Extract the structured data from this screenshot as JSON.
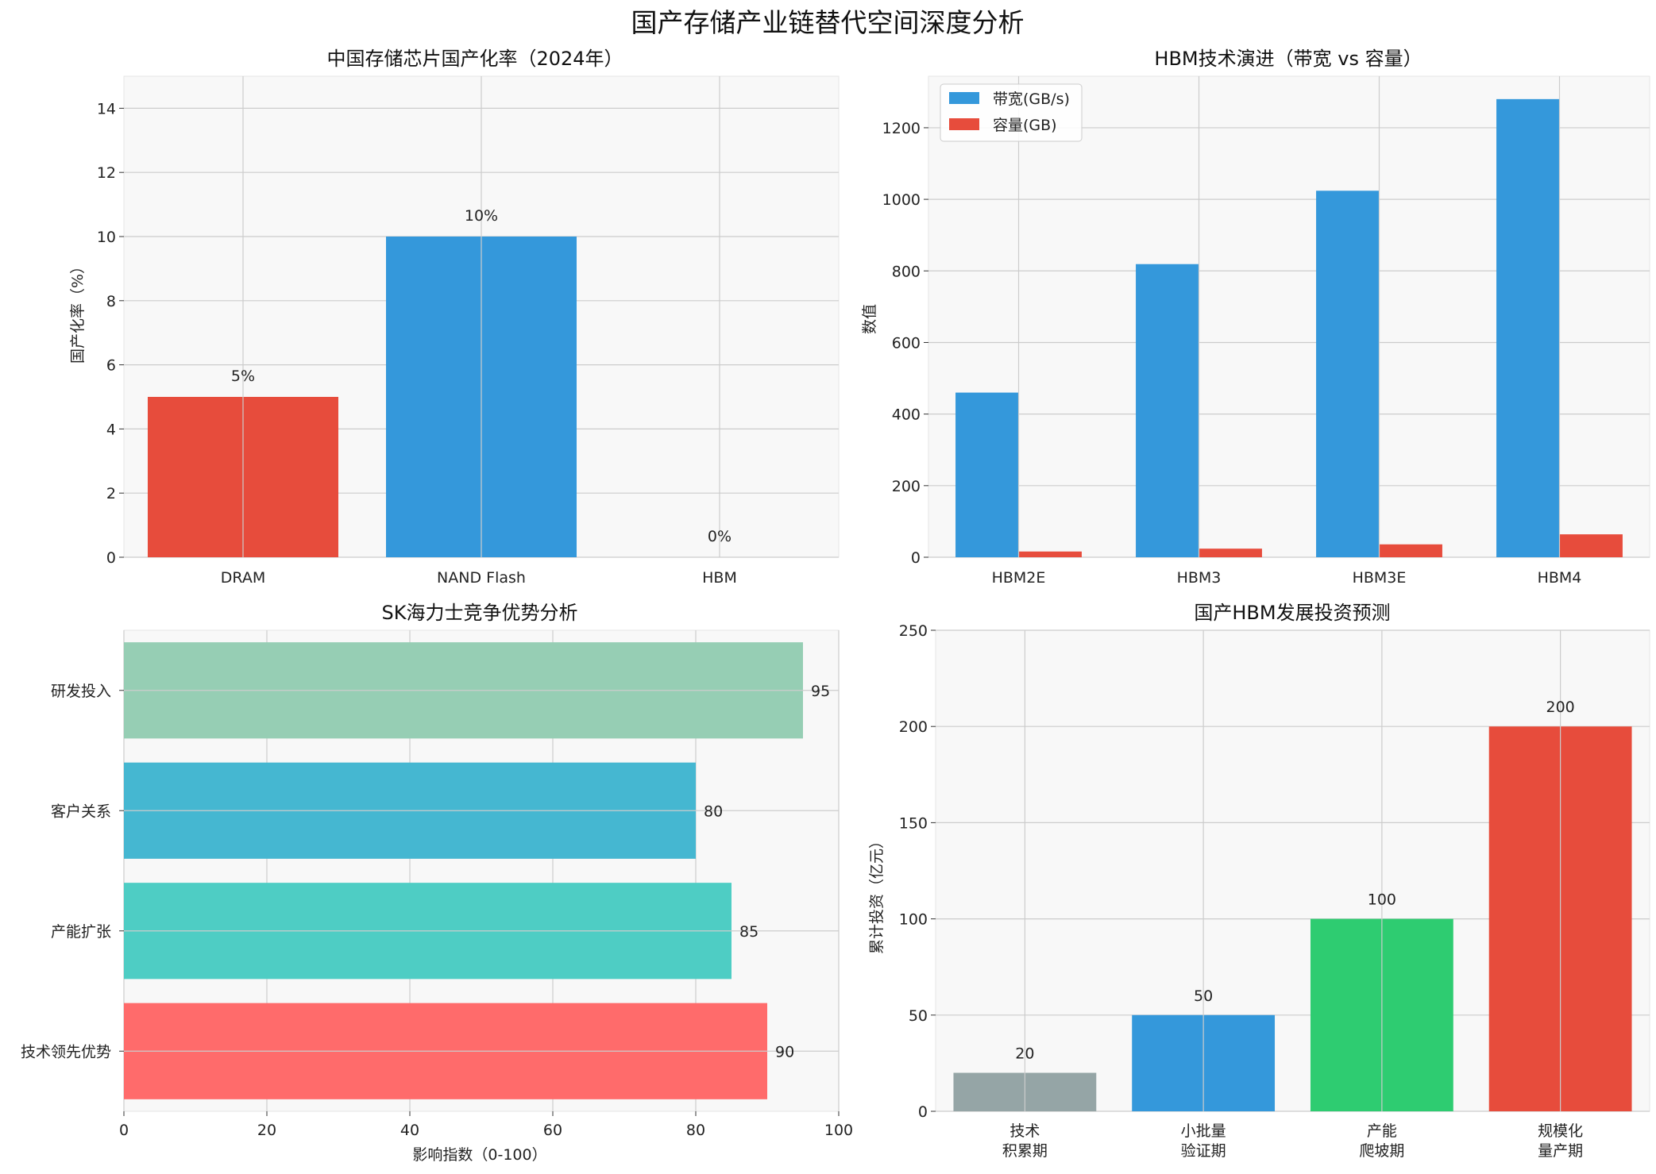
{
  "figure": {
    "title": "国产存储产业链替代空间深度分析"
  },
  "chart_data": [
    {
      "type": "bar",
      "title": "中国存储芯片国产化率（2024年）",
      "xlabel": "",
      "ylabel": "国产化率（%）",
      "categories": [
        "DRAM",
        "NAND Flash",
        "HBM"
      ],
      "values": [
        5,
        10,
        0
      ],
      "value_labels": [
        "5%",
        "10%",
        "0%"
      ],
      "colors": [
        "#e74c3c",
        "#3498db",
        "#95a5a6"
      ],
      "ylim": [
        0,
        15
      ],
      "yticks": [
        "0",
        "2",
        "4",
        "6",
        "8",
        "10",
        "12",
        "14"
      ],
      "grid": true
    },
    {
      "type": "bar",
      "title": "HBM技术演进（带宽 vs 容量）",
      "xlabel": "",
      "ylabel": "数值",
      "categories": [
        "HBM2E",
        "HBM3",
        "HBM3E",
        "HBM4"
      ],
      "series": [
        {
          "name": "带宽(GB/s)",
          "values": [
            460,
            819,
            1024,
            1280
          ],
          "color": "#3498db"
        },
        {
          "name": "容量(GB)",
          "values": [
            16,
            24,
            36,
            64
          ],
          "color": "#e74c3c"
        }
      ],
      "ylim": [
        0,
        1344
      ],
      "yticks": [
        "0",
        "200",
        "400",
        "600",
        "800",
        "1000",
        "1200"
      ],
      "legend": "top-left",
      "grid": true
    },
    {
      "type": "bar",
      "orientation": "horizontal",
      "title": "SK海力士竞争优势分析",
      "xlabel": "影响指数（0-100）",
      "ylabel": "",
      "categories": [
        "技术领先优势",
        "产能扩张",
        "客户关系",
        "研发投入"
      ],
      "values": [
        90,
        85,
        80,
        95
      ],
      "colors": [
        "#ff6b6b",
        "#4ecdc4",
        "#45b7d1",
        "#96ceb4"
      ],
      "xlim": [
        0,
        100
      ],
      "xticks": [
        "0",
        "20",
        "40",
        "60",
        "80",
        "100"
      ],
      "grid": true
    },
    {
      "type": "bar",
      "title": "国产HBM发展投资预测",
      "xlabel": "",
      "ylabel": "累计投资（亿元）",
      "categories": [
        "技术\n积累期",
        "小批量\n验证期",
        "产能\n爬坡期",
        "规模化\n量产期"
      ],
      "values": [
        20,
        50,
        100,
        200
      ],
      "colors": [
        "#95a5a6",
        "#3498db",
        "#2ecc71",
        "#e74c3c"
      ],
      "ylim": [
        0,
        250
      ],
      "yticks": [
        "0",
        "50",
        "100",
        "150",
        "200",
        "250"
      ],
      "grid": true
    }
  ]
}
